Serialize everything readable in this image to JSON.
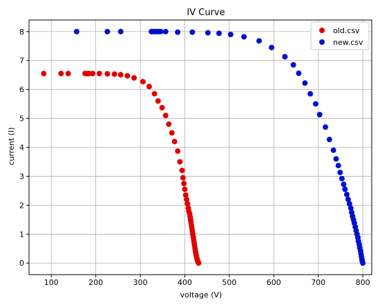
{
  "chart_data": {
    "type": "scatter",
    "title": "IV Curve",
    "xlabel": "voltage (V)",
    "ylabel": "current (I)",
    "xlim": [
      50,
      820
    ],
    "ylim": [
      -0.4,
      8.4
    ],
    "x_ticks": [
      100,
      200,
      300,
      400,
      500,
      600,
      700,
      800
    ],
    "y_ticks": [
      0,
      1,
      2,
      3,
      4,
      5,
      6,
      7,
      8
    ],
    "grid": true,
    "legend_position": "top-right",
    "series": [
      {
        "name": "old.csv",
        "color": "#e00000",
        "x": [
          83,
          122,
          138,
          176,
          181,
          185,
          193,
          208,
          226,
          242,
          256,
          271,
          286,
          306,
          320,
          332,
          340,
          349,
          357,
          364,
          371,
          377,
          384,
          389,
          394,
          396,
          398,
          400,
          402,
          404,
          406,
          408,
          409,
          411,
          412,
          413,
          414,
          415,
          416,
          417,
          418,
          419,
          420,
          421,
          422,
          423,
          424,
          425,
          426,
          427,
          428,
          429,
          430,
          431
        ],
        "y": [
          6.55,
          6.55,
          6.55,
          6.55,
          6.55,
          6.55,
          6.55,
          6.55,
          6.54,
          6.53,
          6.51,
          6.47,
          6.4,
          6.27,
          6.1,
          5.85,
          5.6,
          5.37,
          5.1,
          4.8,
          4.5,
          4.2,
          3.87,
          3.5,
          3.2,
          2.95,
          2.75,
          2.55,
          2.35,
          2.2,
          2.05,
          1.9,
          1.8,
          1.7,
          1.6,
          1.5,
          1.4,
          1.3,
          1.2,
          1.1,
          1.0,
          0.9,
          0.8,
          0.7,
          0.6,
          0.5,
          0.4,
          0.32,
          0.25,
          0.18,
          0.12,
          0.07,
          0.03,
          0.0
        ]
      },
      {
        "name": "new.csv",
        "color": "#0010d0",
        "x": [
          157,
          226,
          256,
          325,
          328,
          333,
          336,
          341,
          346,
          357,
          384,
          417,
          452,
          477,
          503,
          533,
          567,
          595,
          625,
          644,
          656,
          670,
          682,
          694,
          703,
          716,
          725,
          734,
          740,
          745,
          749,
          753,
          757,
          760,
          764,
          767,
          770,
          773,
          775,
          777,
          779,
          781,
          783,
          785,
          787,
          789,
          790,
          792,
          793,
          795,
          796,
          797,
          798,
          799,
          800
        ],
        "y": [
          8.0,
          8.0,
          8.0,
          8.0,
          8.0,
          8.0,
          8.0,
          8.0,
          8.0,
          8.0,
          7.98,
          7.98,
          7.96,
          7.94,
          7.9,
          7.82,
          7.68,
          7.45,
          7.13,
          6.85,
          6.56,
          6.22,
          5.85,
          5.5,
          5.13,
          4.7,
          4.27,
          3.9,
          3.6,
          3.37,
          3.13,
          2.92,
          2.72,
          2.55,
          2.37,
          2.2,
          2.05,
          1.9,
          1.75,
          1.62,
          1.5,
          1.38,
          1.25,
          1.12,
          1.0,
          0.88,
          0.76,
          0.64,
          0.53,
          0.42,
          0.32,
          0.22,
          0.13,
          0.05,
          0.0
        ]
      }
    ]
  }
}
